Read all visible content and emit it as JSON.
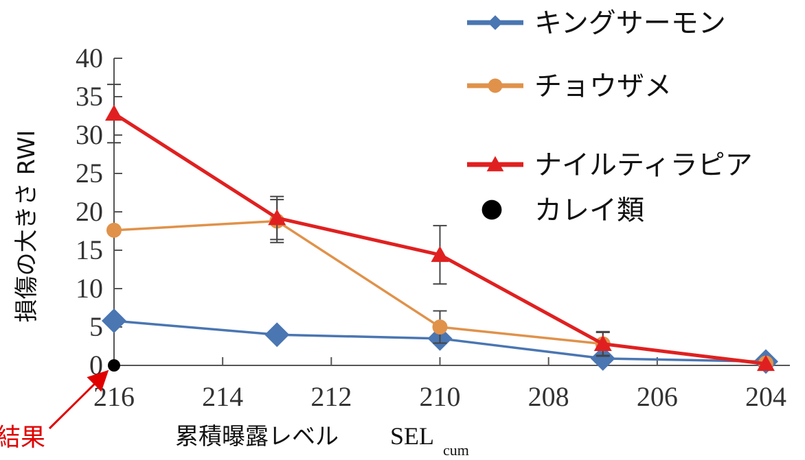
{
  "chart_data": {
    "type": "line",
    "ylabel": "損傷の大きさ RWI",
    "xlabel": "累積曝露レベル",
    "xlabel_serif": "SEL",
    "xlabel_sub": "cum",
    "xlim": [
      216,
      204
    ],
    "ylim": [
      0,
      40
    ],
    "xticks": [
      "216",
      "214",
      "212",
      "210",
      "208",
      "206",
      "204"
    ],
    "yticks": [
      "0",
      "5",
      "10",
      "15",
      "20",
      "25",
      "30",
      "35",
      "40"
    ],
    "grid": false,
    "legend_position": "top-right",
    "series": [
      {
        "name": "キングサーモン",
        "color": "#4A76B2",
        "marker": "diamond",
        "x": [
          216,
          213,
          210,
          207,
          204
        ],
        "y": [
          5.8,
          4.0,
          3.5,
          0.9,
          0.5
        ]
      },
      {
        "name": "チョウザメ",
        "color": "#E0924A",
        "marker": "circle",
        "x": [
          216,
          213,
          210,
          207,
          204
        ],
        "y": [
          17.6,
          18.8,
          5.0,
          2.8,
          0.3
        ],
        "err": [
          0,
          2.8,
          2.1,
          1.6,
          0
        ]
      },
      {
        "name": "ナイルティラピア",
        "color": "#E02020",
        "marker": "triangle",
        "x": [
          216,
          213,
          210,
          207,
          204
        ],
        "y": [
          32.8,
          19.2,
          14.4,
          2.8,
          0.2
        ],
        "err": [
          3.8,
          2.8,
          3.8,
          1.5,
          0
        ]
      },
      {
        "name": "カレイ類",
        "color": "#000000",
        "marker": "dot",
        "x": [
          216
        ],
        "y": [
          0
        ]
      }
    ],
    "annotation": {
      "text": "結果",
      "color": "#E00000"
    }
  }
}
